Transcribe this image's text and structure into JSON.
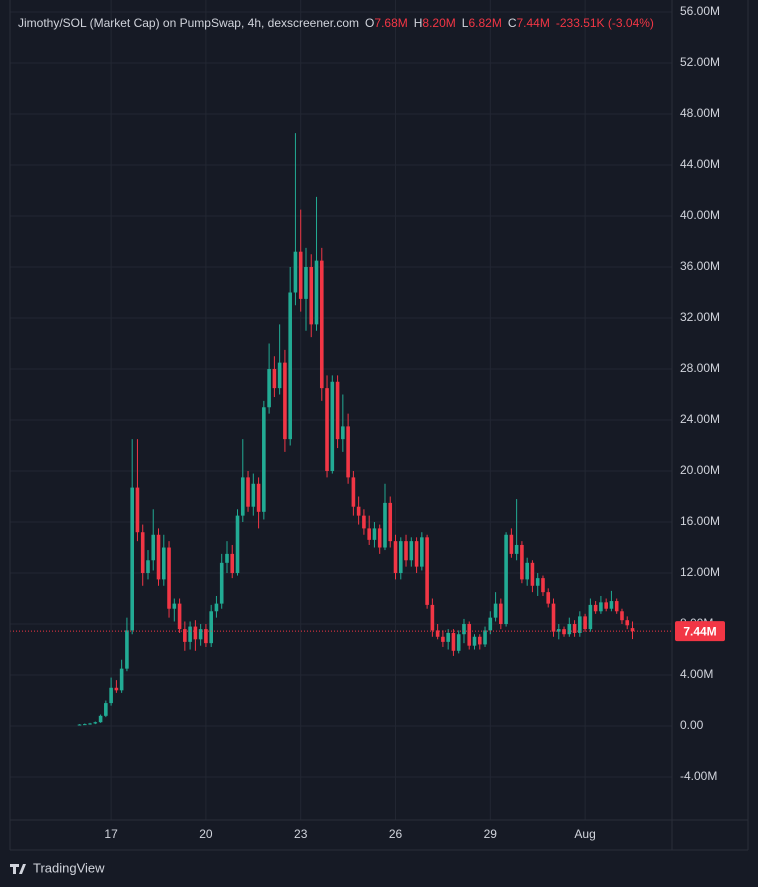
{
  "chart_data": {
    "type": "candlestick",
    "title": "Jimothy/SOL (Market Cap) on PumpSwap, 4h, dexscreener.com",
    "ohlc_labels": [
      "O",
      "H",
      "L",
      "C"
    ],
    "ohlc_values": [
      "7.68M",
      "8.20M",
      "6.82M",
      "7.44M"
    ],
    "change": "-233.51K (-3.04%)",
    "last_price_label": "7.44M",
    "up_color": "#22ab94",
    "down_color": "#f23645",
    "grid": true,
    "x": [
      16,
      16.167,
      16.333,
      16.5,
      16.667,
      16.833,
      17,
      17.167,
      17.333,
      17.5,
      17.667,
      17.833,
      18,
      18.167,
      18.333,
      18.5,
      18.667,
      18.833,
      19,
      19.167,
      19.333,
      19.5,
      19.667,
      19.833,
      20,
      20.167,
      20.333,
      20.5,
      20.667,
      20.833,
      21,
      21.167,
      21.333,
      21.5,
      21.667,
      21.833,
      22,
      22.167,
      22.333,
      22.5,
      22.667,
      22.833,
      23,
      23.167,
      23.333,
      23.5,
      23.667,
      23.833,
      24,
      24.167,
      24.333,
      24.5,
      24.667,
      24.833,
      25,
      25.167,
      25.333,
      25.5,
      25.667,
      25.833,
      26,
      26.167,
      26.333,
      26.5,
      26.667,
      26.833,
      27,
      27.167,
      27.333,
      27.5,
      27.667,
      27.833,
      28,
      28.167,
      28.333,
      28.5,
      28.667,
      28.833,
      29,
      29.167,
      29.333,
      29.5,
      29.667,
      29.833,
      30,
      30.167,
      30.333,
      30.5,
      30.667,
      30.833,
      31,
      31.167,
      31.333,
      31.5,
      31.667,
      31.833,
      32,
      32.167,
      32.333,
      32.5,
      32.667,
      32.833,
      33,
      33.167,
      33.333,
      33.5
    ],
    "open": [
      0.1,
      0.12,
      0.15,
      0.2,
      0.3,
      0.8,
      1.8,
      3.0,
      2.8,
      4.5,
      7.5,
      18.7,
      15.2,
      12.0,
      13.0,
      15.0,
      11.5,
      14.0,
      9.2,
      9.6,
      7.6,
      6.6,
      7.8,
      6.8,
      7.6,
      6.5,
      9.0,
      9.6,
      12.8,
      13.5,
      12.0,
      16.5,
      19.5,
      17.2,
      19.0,
      16.8,
      25.0,
      28.0,
      26.5,
      28.5,
      22.5,
      34.0,
      37.2,
      33.5,
      36.0,
      31.5,
      36.5,
      26.5,
      20.0,
      27.0,
      22.5,
      23.5,
      19.5,
      17.2,
      16.5,
      15.5,
      14.6,
      15.5,
      14.0,
      17.5,
      14.5,
      12.0,
      14.5,
      13.0,
      14.5,
      12.5,
      14.8,
      9.5,
      7.5,
      7.0,
      6.6,
      7.3,
      5.9,
      7.2,
      8.0,
      6.3,
      7.0,
      6.4,
      7.5,
      8.5,
      9.6,
      8.0,
      15.0,
      13.5,
      14.2,
      11.5,
      12.8,
      11.0,
      11.6,
      10.5,
      9.6,
      7.4,
      7.6,
      7.2,
      8.0,
      7.3,
      8.6,
      7.6,
      9.5,
      9.0,
      9.7,
      9.2,
      9.8,
      9.0,
      8.3,
      7.68
    ],
    "high": [
      0.15,
      0.2,
      0.25,
      0.35,
      0.9,
      2.0,
      3.8,
      3.6,
      5.2,
      8.5,
      22.5,
      22.5,
      15.8,
      13.8,
      17.0,
      15.5,
      15.0,
      14.5,
      10.0,
      10.0,
      8.2,
      8.2,
      8.3,
      8.0,
      8.0,
      9.5,
      10.2,
      13.5,
      14.5,
      14.2,
      17.0,
      22.5,
      20.0,
      19.8,
      19.5,
      25.5,
      30.0,
      29.0,
      31.5,
      29.5,
      36.0,
      46.5,
      40.5,
      37.5,
      37.0,
      41.5,
      37.5,
      27.5,
      27.5,
      27.5,
      26.0,
      24.5,
      20.0,
      18.0,
      17.0,
      16.5,
      16.0,
      15.8,
      19.0,
      18.0,
      15.0,
      14.8,
      15.0,
      14.8,
      14.8,
      15.2,
      15.0,
      10.0,
      8.0,
      7.5,
      7.6,
      7.6,
      7.5,
      8.4,
      8.2,
      7.2,
      7.2,
      7.8,
      9.0,
      10.5,
      10.0,
      15.2,
      15.5,
      17.8,
      14.5,
      13.2,
      13.0,
      12.0,
      11.8,
      10.8,
      10.0,
      8.0,
      7.8,
      8.5,
      8.3,
      9.0,
      8.8,
      10.0,
      9.8,
      10.2,
      10.0,
      10.6,
      10.0,
      9.2,
      8.6,
      8.2
    ],
    "low": [
      0.05,
      0.1,
      0.1,
      0.15,
      0.25,
      0.7,
      1.6,
      2.6,
      2.6,
      4.3,
      7.2,
      14.5,
      11.0,
      11.5,
      12.2,
      11.0,
      11.0,
      8.5,
      8.2,
      7.3,
      5.9,
      6.0,
      5.9,
      6.3,
      6.2,
      6.2,
      8.5,
      9.2,
      12.0,
      11.6,
      11.8,
      16.0,
      16.8,
      16.5,
      15.5,
      16.2,
      24.5,
      25.8,
      26.0,
      21.5,
      22.0,
      33.0,
      32.5,
      31.0,
      30.5,
      31.0,
      25.5,
      19.5,
      19.8,
      21.8,
      21.5,
      19.0,
      16.5,
      15.8,
      15.0,
      14.2,
      14.0,
      13.5,
      13.8,
      14.0,
      11.5,
      11.5,
      12.5,
      12.5,
      12.0,
      12.2,
      9.2,
      7.0,
      6.8,
      6.2,
      6.0,
      5.5,
      5.7,
      6.5,
      6.0,
      6.0,
      6.0,
      6.2,
      7.2,
      8.2,
      7.6,
      7.8,
      13.2,
      13.0,
      11.2,
      11.0,
      10.5,
      10.2,
      10.2,
      9.3,
      7.0,
      6.8,
      7.0,
      7.0,
      7.0,
      7.0,
      7.4,
      7.4,
      8.8,
      8.8,
      9.0,
      9.0,
      8.8,
      8.0,
      7.6,
      6.82
    ],
    "close": [
      0.12,
      0.15,
      0.2,
      0.3,
      0.8,
      1.8,
      3.0,
      2.8,
      4.5,
      7.5,
      18.7,
      15.2,
      12.0,
      13.0,
      15.0,
      11.5,
      14.0,
      9.2,
      9.6,
      7.6,
      6.6,
      7.8,
      6.8,
      7.6,
      6.5,
      9.0,
      9.6,
      12.8,
      13.5,
      12.0,
      16.5,
      19.5,
      17.2,
      19.0,
      16.8,
      25.0,
      28.0,
      26.5,
      28.5,
      22.5,
      34.0,
      37.2,
      33.5,
      36.0,
      31.5,
      36.5,
      26.5,
      20.0,
      27.0,
      22.5,
      23.5,
      19.5,
      17.2,
      16.5,
      15.5,
      14.6,
      15.5,
      14.0,
      17.5,
      14.5,
      12.0,
      14.5,
      13.0,
      14.5,
      12.5,
      14.8,
      9.5,
      7.5,
      7.0,
      6.6,
      7.3,
      5.9,
      7.2,
      8.0,
      6.3,
      7.0,
      6.4,
      7.5,
      8.5,
      9.6,
      8.0,
      15.0,
      13.5,
      14.2,
      11.5,
      12.8,
      11.0,
      11.6,
      10.5,
      9.6,
      7.4,
      7.6,
      7.2,
      8.0,
      7.3,
      8.6,
      7.6,
      9.5,
      9.0,
      9.7,
      9.2,
      9.8,
      9.0,
      8.3,
      7.9,
      7.44
    ],
    "xlim": [
      13.8,
      34.75
    ],
    "xticks": [
      17,
      20,
      23,
      26,
      29,
      {
        "value": 32,
        "label": "Aug"
      }
    ],
    "ylim": [
      -7.37,
      56.94
    ],
    "yticks": [
      {
        "value": -4,
        "label": "-4.00M"
      },
      {
        "value": 0,
        "label": "0.00"
      },
      {
        "value": 4,
        "label": "4.00M"
      },
      {
        "value": 8,
        "label": "8.00M"
      },
      {
        "value": 12,
        "label": "12.00M"
      },
      {
        "value": 16,
        "label": "16.00M"
      },
      {
        "value": 20,
        "label": "20.00M"
      },
      {
        "value": 24,
        "label": "24.00M"
      },
      {
        "value": 28,
        "label": "28.00M"
      },
      {
        "value": 32,
        "label": "32.00M"
      },
      {
        "value": 36,
        "label": "36.00M"
      },
      {
        "value": 40,
        "label": "40.00M"
      },
      {
        "value": 44,
        "label": "44.00M"
      },
      {
        "value": 48,
        "label": "48.00M"
      },
      {
        "value": 52,
        "label": "52.00M"
      },
      {
        "value": 56,
        "label": "56.00M"
      }
    ]
  },
  "branding": "TradingView"
}
